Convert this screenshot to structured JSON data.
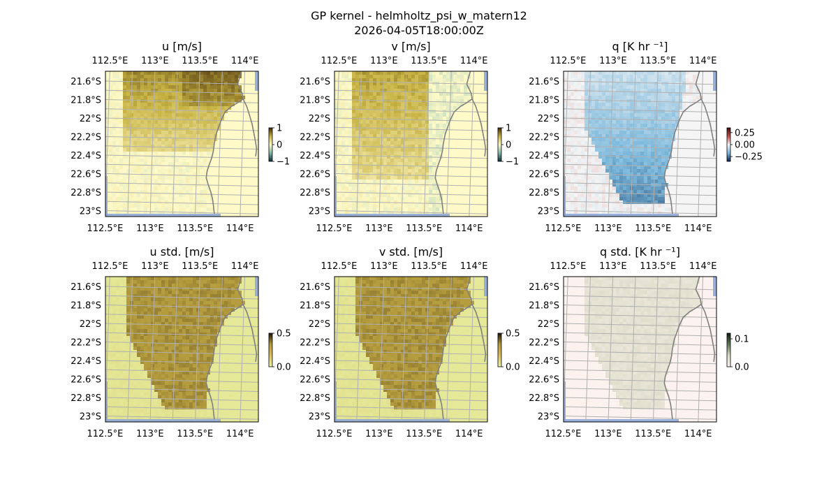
{
  "figure": {
    "title_line1": "GP kernel - helmholtz_psi_w_matern12",
    "title_line2": "2026-04-05T18:00:00Z"
  },
  "chart_data": [
    {
      "type": "heatmap",
      "title": "u [m/s]",
      "field": "u",
      "colormap": "yellow-olive",
      "x_ticks": [
        "112.5°E",
        "113°E",
        "113.5°E",
        "114°E"
      ],
      "y_ticks": [
        "21.6°S",
        "21.8°S",
        "22°S",
        "22.2°S",
        "22.4°S",
        "22.6°S",
        "22.8°S",
        "23°S"
      ],
      "colorbar": {
        "ticks": [
          "1",
          "0",
          "−1"
        ],
        "range": [
          -1,
          1
        ],
        "colors": [
          "#3d2608",
          "#c7b242",
          "#fffac8",
          "#7fb8ad",
          "#0a2a3a"
        ]
      },
      "grid": true
    },
    {
      "type": "heatmap",
      "title": "v [m/s]",
      "field": "v",
      "colormap": "yellow-olive",
      "x_ticks": [
        "112.5°E",
        "113°E",
        "113.5°E",
        "114°E"
      ],
      "y_ticks": [
        "21.6°S",
        "21.8°S",
        "22°S",
        "22.2°S",
        "22.4°S",
        "22.6°S",
        "22.8°S",
        "23°S"
      ],
      "colorbar": {
        "ticks": [
          "1",
          "0",
          "−1"
        ],
        "range": [
          -1,
          1
        ],
        "colors": [
          "#3d2608",
          "#c7b242",
          "#fffac8",
          "#7fb8ad",
          "#0a2a3a"
        ]
      },
      "grid": true
    },
    {
      "type": "heatmap",
      "title": "q [K hr ⁻¹]",
      "field": "q",
      "colormap": "red-blue",
      "x_ticks": [
        "112.5°E",
        "113°E",
        "113.5°E",
        "114°E"
      ],
      "y_ticks": [
        "21.6°S",
        "21.8°S",
        "22°S",
        "22.2°S",
        "22.4°S",
        "22.6°S",
        "22.8°S",
        "23°S"
      ],
      "colorbar": {
        "ticks": [
          "0.25",
          "0.00",
          "−0.25"
        ],
        "range": [
          -0.35,
          0.35
        ],
        "colors": [
          "#3a0a08",
          "#c0504a",
          "#f5f5f5",
          "#7ab8dc",
          "#08204a"
        ]
      },
      "grid": true
    },
    {
      "type": "heatmap",
      "title": "u std. [m/s]",
      "field": "u_std",
      "colormap": "olive-green",
      "x_ticks": [
        "112.5°E",
        "113°E",
        "113.5°E",
        "114°E"
      ],
      "y_ticks": [
        "21.6°S",
        "21.8°S",
        "22°S",
        "22.2°S",
        "22.4°S",
        "22.6°S",
        "22.8°S",
        "23°S"
      ],
      "colorbar": {
        "ticks": [
          "0.5",
          "0.0"
        ],
        "range": [
          0,
          0.5
        ],
        "colors": [
          "#1e1608",
          "#b39a3c",
          "#d8c060",
          "#e8f4a8"
        ]
      },
      "grid": true
    },
    {
      "type": "heatmap",
      "title": "v std. [m/s]",
      "field": "v_std",
      "colormap": "olive-green",
      "x_ticks": [
        "112.5°E",
        "113°E",
        "113.5°E",
        "114°E"
      ],
      "y_ticks": [
        "21.6°S",
        "21.8°S",
        "22°S",
        "22.2°S",
        "22.4°S",
        "22.6°S",
        "22.8°S",
        "23°S"
      ],
      "colorbar": {
        "ticks": [
          "0.5",
          "0.0"
        ],
        "range": [
          0,
          0.5
        ],
        "colors": [
          "#1e1608",
          "#b39a3c",
          "#d8c060",
          "#e8f4a8"
        ]
      },
      "grid": true
    },
    {
      "type": "heatmap",
      "title": "q std. [K hr ⁻¹]",
      "field": "q_std",
      "colormap": "pale",
      "x_ticks": [
        "112.5°E",
        "113°E",
        "113.5°E",
        "114°E"
      ],
      "y_ticks": [
        "21.6°S",
        "21.8°S",
        "22°S",
        "22.2°S",
        "22.4°S",
        "22.6°S",
        "22.8°S",
        "23°S"
      ],
      "colorbar": {
        "ticks": [
          "0.1",
          "0.0"
        ],
        "range": [
          0,
          0.12
        ],
        "colors": [
          "#0a1a10",
          "#5f7a58",
          "#dcdcc8",
          "#fff4f2"
        ]
      },
      "grid": true
    }
  ],
  "colors": {
    "ocean_edge": "#8ea7d8",
    "coastline": "#808080",
    "gridline": "#b0b0b0"
  }
}
